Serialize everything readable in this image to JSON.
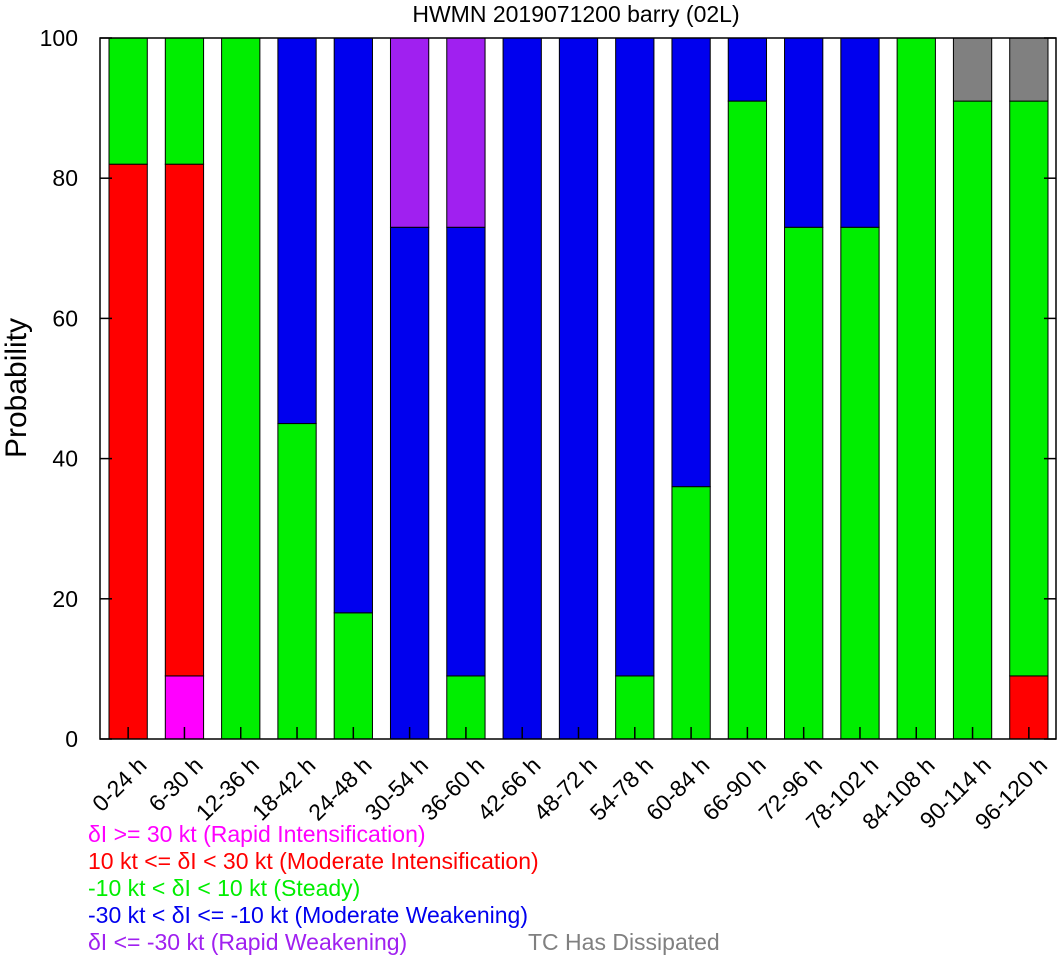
{
  "chart_data": {
    "type": "bar",
    "stacked": true,
    "title": "HWMN 2019071200 barry (02L)",
    "ylabel": "Probability",
    "ylim": [
      0,
      100
    ],
    "yticks": [
      "0",
      "20",
      "40",
      "60",
      "80",
      "100"
    ],
    "categories": [
      "0-24 h",
      "6-30 h",
      "12-36 h",
      "18-42 h",
      "24-48 h",
      "30-54 h",
      "36-60 h",
      "42-66 h",
      "48-72 h",
      "54-78 h",
      "60-84 h",
      "66-90 h",
      "72-96 h",
      "78-102 h",
      "84-108 h",
      "90-114 h",
      "96-120 h"
    ],
    "series": [
      {
        "name": "δI >= 30 kt (Rapid Intensification)",
        "color": "#ff00ff",
        "values": [
          0,
          9,
          0,
          0,
          0,
          0,
          0,
          0,
          0,
          0,
          0,
          0,
          0,
          0,
          0,
          0,
          0
        ]
      },
      {
        "name": "10 kt <= δI < 30 kt (Moderate Intensification)",
        "color": "#ff0000",
        "values": [
          82,
          73,
          0,
          0,
          0,
          0,
          0,
          0,
          0,
          0,
          0,
          0,
          0,
          0,
          0,
          0,
          9
        ]
      },
      {
        "name": "-10 kt < δI < 10 kt (Steady)",
        "color": "#00ee00",
        "values": [
          18,
          18,
          100,
          45,
          18,
          0,
          9,
          0,
          0,
          9,
          36,
          91,
          73,
          73,
          100,
          91,
          82
        ]
      },
      {
        "name": "-30 kt < δI <= -10 kt (Moderate Weakening)",
        "color": "#0000ee",
        "values": [
          0,
          0,
          0,
          55,
          82,
          73,
          64,
          100,
          100,
          91,
          64,
          9,
          27,
          27,
          0,
          0,
          0
        ]
      },
      {
        "name": "δI <= -30 kt (Rapid Weakening)",
        "color": "#a020f0",
        "values": [
          0,
          0,
          0,
          0,
          0,
          27,
          27,
          0,
          0,
          0,
          0,
          0,
          0,
          0,
          0,
          0,
          0
        ]
      },
      {
        "name": "TC Has Dissipated",
        "color": "#808080",
        "values": [
          0,
          0,
          0,
          0,
          0,
          0,
          0,
          0,
          0,
          0,
          0,
          0,
          0,
          0,
          0,
          9,
          9
        ]
      }
    ]
  }
}
